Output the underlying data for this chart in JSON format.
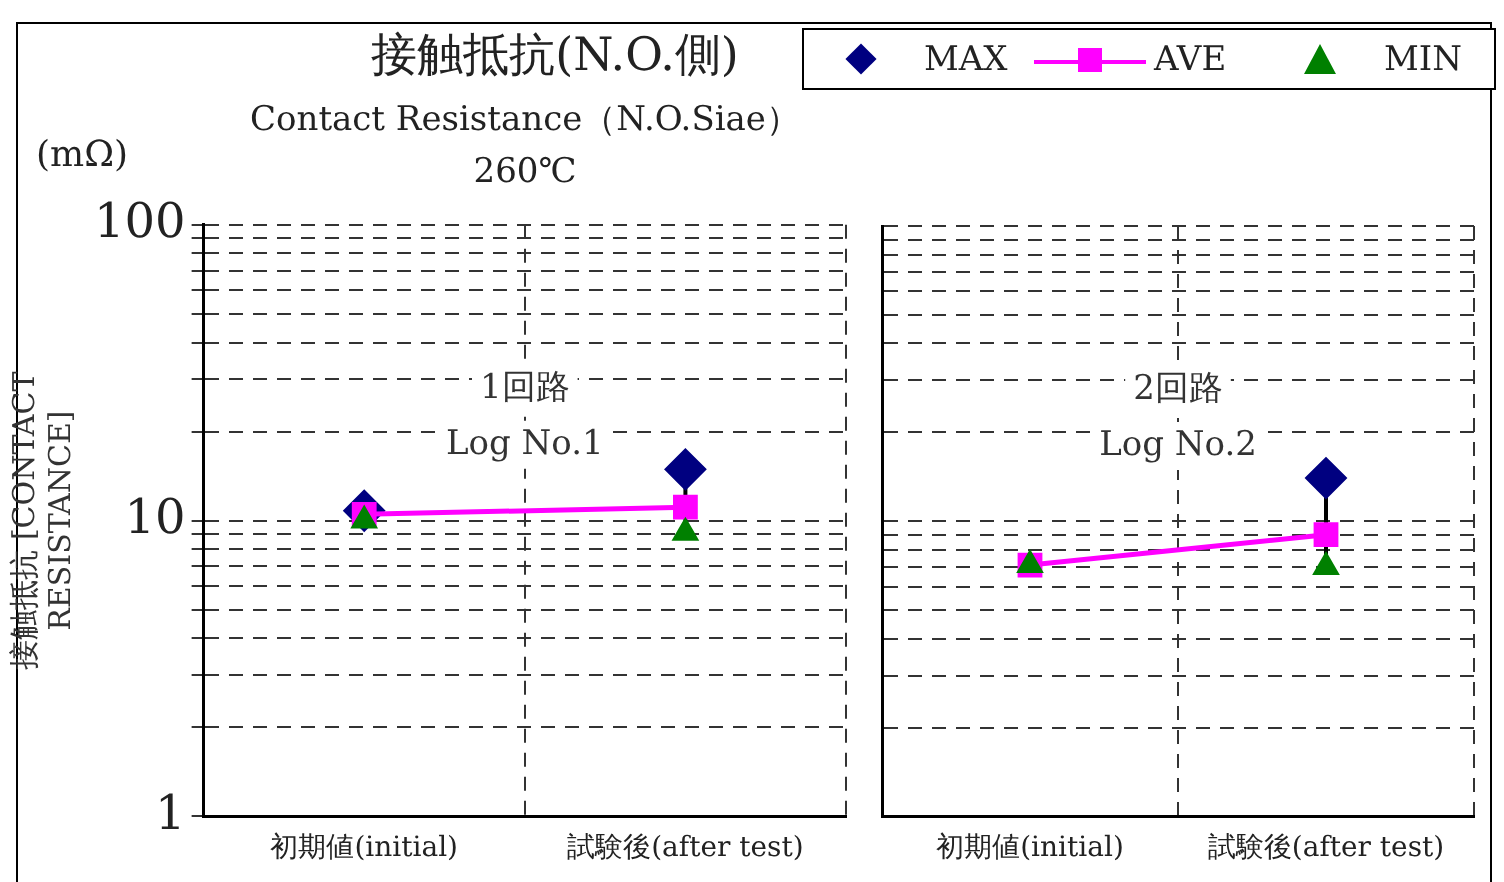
{
  "chart_data": [
    {
      "type": "line",
      "title": "接触抵抗(N.O.側)",
      "subtitle": "Contact Resistance（N.O.Siae）\n260℃",
      "ylabel": "接触抵抗 [CONTACT RESISTANCE]",
      "annotations": [
        "(mΩ)",
        "1回路",
        "Log No.1"
      ],
      "categories": [
        "初期値(initial)",
        "試験後(after test)"
      ],
      "log": true,
      "ylim": [
        1,
        100
      ],
      "yticks": [
        1,
        {
          "value": 2,
          "label": null
        },
        {
          "value": 3,
          "label": null
        },
        {
          "value": 4,
          "label": null
        },
        {
          "value": 5,
          "label": null
        },
        {
          "value": 6,
          "label": null
        },
        {
          "value": 7,
          "label": null
        },
        {
          "value": 8,
          "label": null
        },
        {
          "value": 9,
          "label": null
        },
        10,
        {
          "value": 20,
          "label": null
        },
        {
          "value": 30,
          "label": null
        },
        {
          "value": 40,
          "label": null
        },
        {
          "value": 50,
          "label": null
        },
        {
          "value": 60,
          "label": null
        },
        {
          "value": 70,
          "label": null
        },
        {
          "value": 80,
          "label": null
        },
        {
          "value": 90,
          "label": null
        },
        100
      ],
      "grid": true,
      "legend": "top right",
      "series": [
        {
          "name": "MAX",
          "type": "scatter",
          "marker": "diamond",
          "color": "#000080",
          "values": [
            10.8,
            14.9
          ]
        },
        {
          "name": "AVE",
          "type": "line",
          "marker": "square",
          "color": "#ff00ff",
          "values": [
            10.5,
            11.1
          ]
        },
        {
          "name": "MIN",
          "type": "scatter",
          "marker": "triangle",
          "color": "#008000",
          "values": [
            10,
            9.1
          ]
        }
      ]
    },
    {
      "type": "line",
      "annotations": [
        "2回路",
        "Log No.2"
      ],
      "categories": [
        "初期値(initial)",
        "試験後(after test)"
      ],
      "log": true,
      "ylim": [
        1,
        100
      ],
      "yticks": [
        1,
        {
          "value": 2,
          "label": null
        },
        {
          "value": 3,
          "label": null
        },
        {
          "value": 4,
          "label": null
        },
        {
          "value": 5,
          "label": null
        },
        {
          "value": 6,
          "label": null
        },
        {
          "value": 7,
          "label": null
        },
        {
          "value": 8,
          "label": null
        },
        {
          "value": 9,
          "label": null
        },
        10,
        {
          "value": 20,
          "label": null
        },
        {
          "value": 30,
          "label": null
        },
        {
          "value": 40,
          "label": null
        },
        {
          "value": 50,
          "label": null
        },
        {
          "value": 60,
          "label": null
        },
        {
          "value": 70,
          "label": null
        },
        {
          "value": 80,
          "label": null
        },
        {
          "value": 90,
          "label": null
        },
        100
      ],
      "grid": true,
      "tick_labels": "x",
      "series": [
        {
          "type": "scatter",
          "marker": "diamond",
          "color": "#000080",
          "values": [
            null,
            14
          ]
        },
        {
          "type": "line",
          "marker": "square",
          "color": "#ff00ff",
          "values": [
            7.1,
            9
          ]
        },
        {
          "type": "scatter",
          "marker": "triangle",
          "color": "#008000",
          "values": [
            7.1,
            7
          ]
        }
      ]
    }
  ]
}
